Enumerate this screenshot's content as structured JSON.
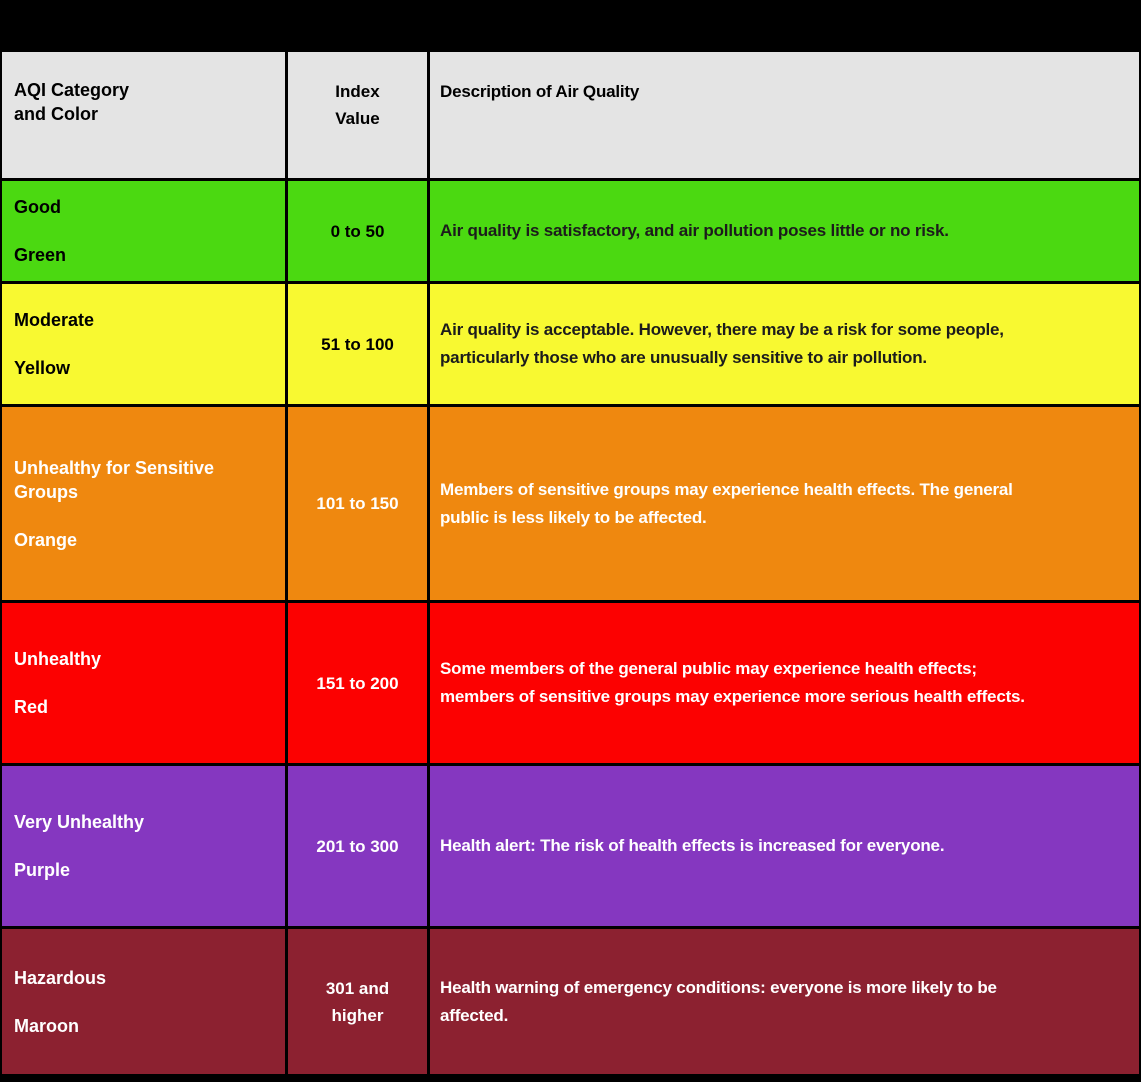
{
  "table": {
    "headers": {
      "col1": "AQI Category\nand Color",
      "col2": "Index\nValue",
      "col3": "Description of Air Quality"
    },
    "rows": [
      {
        "category": "Good",
        "color_name": "Green",
        "index_value": "0 to 50",
        "description": "Air quality is satisfactory, and air pollution poses little or no risk.",
        "bg": "#4bd911",
        "text": "#000000"
      },
      {
        "category": "Moderate",
        "color_name": "Yellow",
        "index_value": "51 to 100",
        "description": "Air quality is acceptable. However, there may be a risk for some people,\nparticularly those who are unusually sensitive to air pollution.",
        "bg": "#f8f931",
        "text": "#000000"
      },
      {
        "category": "Unhealthy for Sensitive Groups",
        "color_name": "Orange",
        "index_value": "101 to 150",
        "description": "Members of sensitive groups may experience health effects. The general\npublic is less likely to be affected.",
        "bg": "#ef880f",
        "text": "#ffffff"
      },
      {
        "category": "Unhealthy",
        "color_name": "Red",
        "index_value": "151 to 200",
        "description": "Some members of the general public may experience health effects;\nmembers of sensitive groups may experience more serious health effects.",
        "bg": "#fc0101",
        "text": "#ffffff"
      },
      {
        "category": "Very Unhealthy",
        "color_name": "Purple",
        "index_value": "201 to 300",
        "description": "Health alert: The risk of health effects is increased for everyone.",
        "bg": "#8537c0",
        "text": "#ffffff"
      },
      {
        "category": "Hazardous",
        "color_name": "Maroon",
        "index_value": "301 and\nhigher",
        "description": "Health warning of emergency conditions: everyone is more likely to be\naffected.",
        "bg": "#8c2130",
        "text": "#ffffff"
      }
    ]
  },
  "colors": {
    "page_background": "#000000",
    "header_background": "#e4e4e4",
    "border": "#000000"
  }
}
